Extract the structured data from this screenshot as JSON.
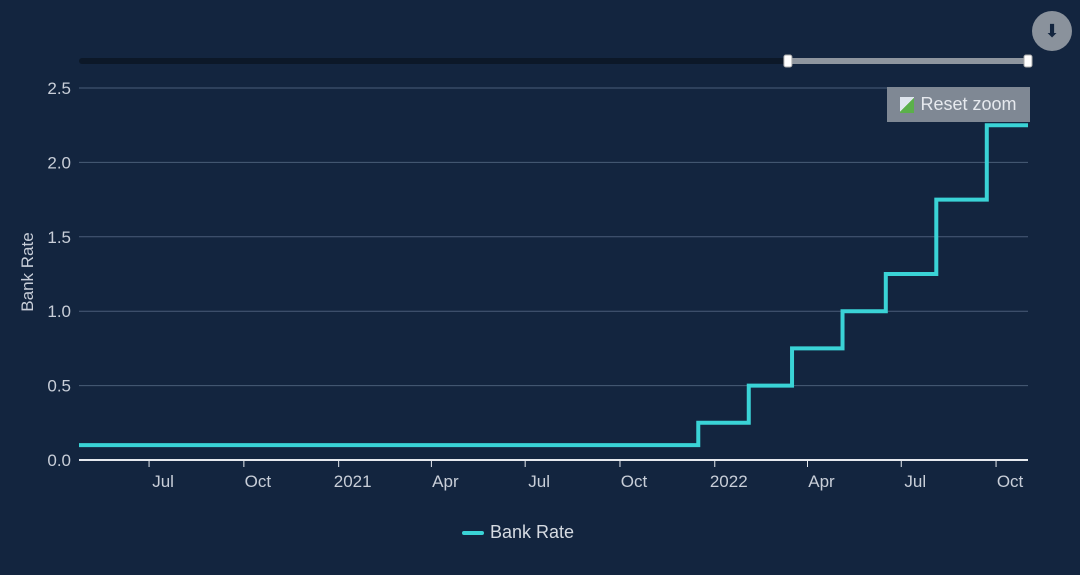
{
  "chart_data": {
    "type": "line",
    "step": true,
    "ylabel": "Bank Rate",
    "xlabel": "",
    "ylim": [
      0,
      2.5
    ],
    "yticks": [
      "0.0",
      "0.5",
      "1.0",
      "1.5",
      "2.0",
      "2.5"
    ],
    "xlim": [
      "2020-04-24",
      "2022-11-01"
    ],
    "xticks": [
      {
        "date": "2020-07-01",
        "label": "Jul"
      },
      {
        "date": "2020-10-01",
        "label": "Oct"
      },
      {
        "date": "2021-01-01",
        "label": "2021"
      },
      {
        "date": "2021-04-01",
        "label": "Apr"
      },
      {
        "date": "2021-07-01",
        "label": "Jul"
      },
      {
        "date": "2021-10-01",
        "label": "Oct"
      },
      {
        "date": "2022-01-01",
        "label": "2022"
      },
      {
        "date": "2022-04-01",
        "label": "Apr"
      },
      {
        "date": "2022-07-01",
        "label": "Jul"
      },
      {
        "date": "2022-10-01",
        "label": "Oct"
      }
    ],
    "grid": true,
    "legend": "bottom-center",
    "series": [
      {
        "name": "Bank Rate",
        "color": "#3ad3d6",
        "points": [
          [
            "2020-04-24",
            0.1
          ],
          [
            "2021-12-16",
            0.25
          ],
          [
            "2022-02-03",
            0.5
          ],
          [
            "2022-03-17",
            0.75
          ],
          [
            "2022-05-05",
            1.0
          ],
          [
            "2022-06-16",
            1.25
          ],
          [
            "2022-08-04",
            1.75
          ],
          [
            "2022-09-22",
            2.25
          ],
          [
            "2022-11-01",
            2.25
          ]
        ]
      }
    ]
  },
  "navigator": {
    "selected_fraction": [
      0.747,
      1.0
    ]
  },
  "buttons": {
    "reset_zoom": "Reset zoom",
    "download": "download-icon"
  }
}
